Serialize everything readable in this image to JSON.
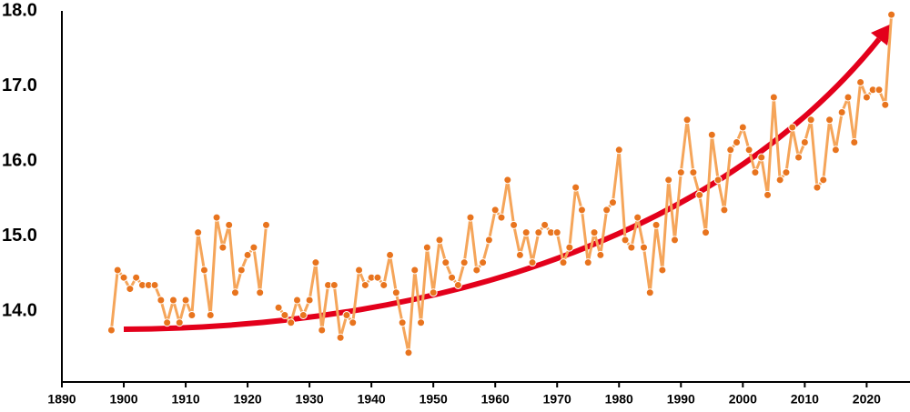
{
  "chart_data": {
    "type": "line",
    "x": [
      1898,
      1899,
      1900,
      1901,
      1902,
      1903,
      1904,
      1905,
      1906,
      1907,
      1908,
      1909,
      1910,
      1911,
      1912,
      1913,
      1914,
      1915,
      1916,
      1917,
      1918,
      1919,
      1920,
      1921,
      1922,
      1923,
      1924,
      1925,
      1926,
      1927,
      1928,
      1929,
      1930,
      1931,
      1932,
      1933,
      1934,
      1935,
      1936,
      1937,
      1938,
      1939,
      1940,
      1941,
      1942,
      1943,
      1944,
      1945,
      1946,
      1947,
      1948,
      1949,
      1950,
      1951,
      1952,
      1953,
      1954,
      1955,
      1956,
      1957,
      1958,
      1959,
      1960,
      1961,
      1962,
      1963,
      1964,
      1965,
      1966,
      1967,
      1968,
      1969,
      1970,
      1971,
      1972,
      1973,
      1974,
      1975,
      1976,
      1977,
      1978,
      1979,
      1980,
      1981,
      1982,
      1983,
      1984,
      1985,
      1986,
      1987,
      1988,
      1989,
      1990,
      1991,
      1992,
      1993,
      1994,
      1995,
      1996,
      1997,
      1998,
      1999,
      2000,
      2001,
      2002,
      2003,
      2004,
      2005,
      2006,
      2007,
      2008,
      2009,
      2010,
      2011,
      2012,
      2013,
      2014,
      2015,
      2016,
      2017,
      2018,
      2019,
      2020,
      2021,
      2022,
      2023,
      2024
    ],
    "series": [
      {
        "color": "#f5a55a",
        "marker_color": "#e8741e",
        "values": [
          13.75,
          14.55,
          14.45,
          14.3,
          14.45,
          14.35,
          14.35,
          14.35,
          14.15,
          13.85,
          14.15,
          13.85,
          14.15,
          13.95,
          15.05,
          14.55,
          13.95,
          15.25,
          14.85,
          15.15,
          14.25,
          14.55,
          14.75,
          14.85,
          14.25,
          15.15,
          null,
          14.05,
          13.95,
          13.85,
          14.15,
          13.95,
          14.15,
          14.65,
          13.75,
          14.35,
          14.35,
          13.65,
          13.95,
          13.85,
          14.55,
          14.35,
          14.45,
          14.45,
          14.35,
          14.75,
          14.25,
          13.85,
          13.45,
          14.55,
          13.85,
          14.85,
          14.25,
          14.95,
          14.65,
          14.45,
          14.35,
          14.65,
          15.25,
          14.55,
          14.65,
          14.95,
          15.35,
          15.25,
          15.75,
          15.15,
          14.75,
          15.05,
          14.65,
          15.05,
          15.15,
          15.05,
          15.05,
          14.65,
          14.85,
          15.65,
          15.35,
          14.65,
          15.05,
          14.75,
          15.35,
          15.45,
          16.15,
          14.95,
          14.85,
          15.25,
          14.85,
          14.25,
          15.15,
          14.55,
          15.75,
          14.95,
          15.85,
          16.55,
          15.85,
          15.55,
          15.05,
          16.35,
          15.75,
          15.35,
          16.15,
          16.25,
          16.45,
          16.15,
          15.85,
          16.05,
          15.55,
          16.85,
          15.75,
          15.85,
          16.45,
          16.05,
          16.25,
          16.55,
          15.65,
          15.75,
          16.55,
          16.15,
          16.65,
          16.85,
          16.25,
          17.05,
          16.85,
          16.95,
          16.95,
          16.75,
          17.95
        ]
      }
    ],
    "xlim": [
      1890,
      2027
    ],
    "xticks": [
      1890,
      1900,
      1910,
      1920,
      1930,
      1940,
      1950,
      1960,
      1970,
      1980,
      1990,
      2000,
      2010,
      2020
    ],
    "ylim": [
      13.06,
      18.0
    ],
    "yticks": [
      {
        "value": 14,
        "label": "14.0"
      },
      {
        "value": 15,
        "label": "15.0"
      },
      {
        "value": 16,
        "label": "16.0"
      },
      {
        "value": 17,
        "label": "17.0"
      },
      {
        "value": 18,
        "label": "18.0"
      }
    ]
  }
}
